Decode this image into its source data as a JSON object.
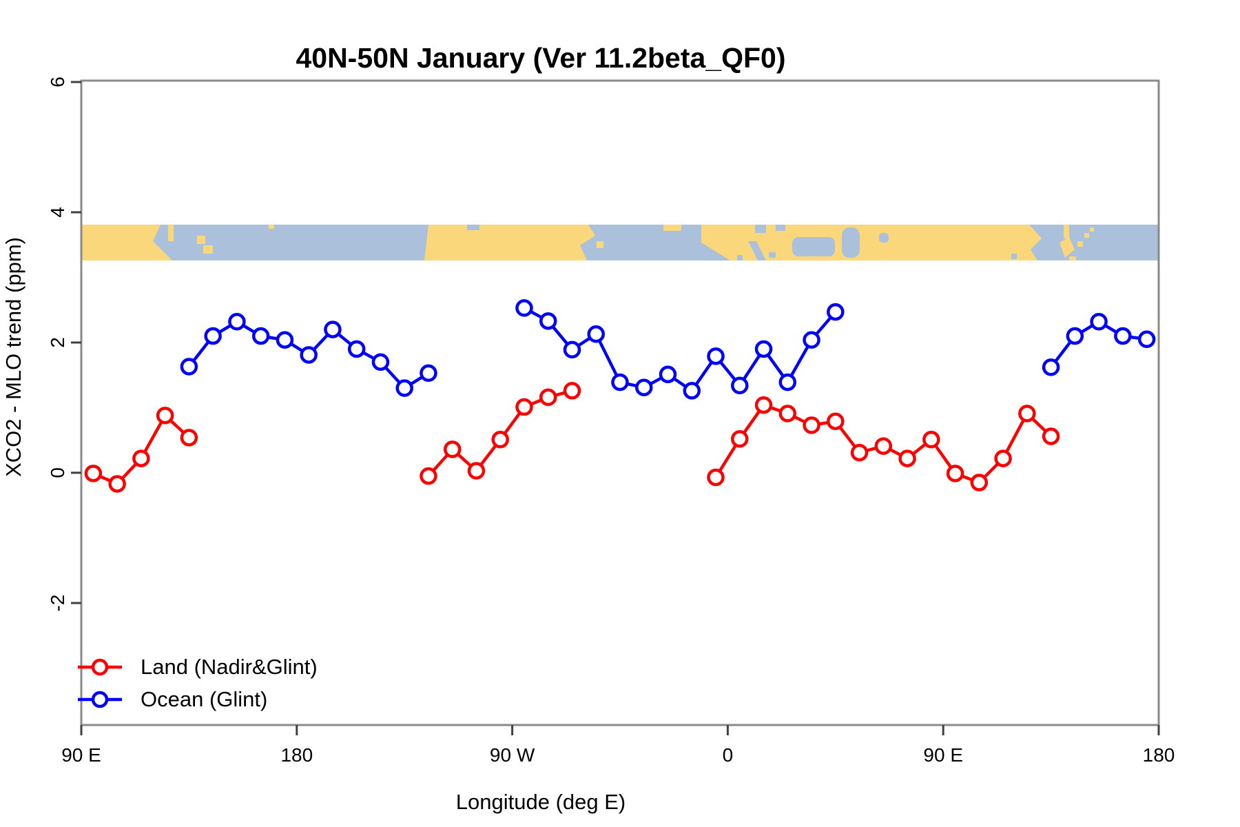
{
  "title": "40N-50N January (Ver 11.2beta_QF0)",
  "colors": {
    "land_series": "#FF0000",
    "ocean_series": "#0000FF",
    "map_land": "#FBD77C",
    "map_ocean": "#ABC0DA",
    "box": "#8a8a8a",
    "tick": "#404040",
    "text": "#000000"
  },
  "legend": {
    "items": [
      {
        "label": "Land (Nadir&Glint)",
        "color": "#FF0000"
      },
      {
        "label": "Ocean (Glint)",
        "color": "#0000FF"
      }
    ]
  },
  "chart_data": {
    "type": "line",
    "title": "40N-50N January (Ver 11.2beta_QF0)",
    "xlabel": "Longitude (deg E)",
    "ylabel": "XCO2 - MLO trend (ppm)",
    "xlim": [
      90,
      540
    ],
    "ylim": [
      -3.9,
      6.0
    ],
    "grid": false,
    "legend_position": "bottom-left",
    "x_ticks": [
      {
        "label": "90 E",
        "lon": 90
      },
      {
        "label": "180",
        "lon": 180
      },
      {
        "label": "90 W",
        "lon": 270
      },
      {
        "label": "0",
        "lon": 360
      },
      {
        "label": "90 E",
        "lon": 450
      },
      {
        "label": "180",
        "lon": 540
      }
    ],
    "y_ticks": [
      {
        "label": "6",
        "value": 6
      },
      {
        "label": "4",
        "value": 4
      },
      {
        "label": "2",
        "value": 2
      },
      {
        "label": "0",
        "value": 0
      },
      {
        "label": "-2",
        "value": -2
      }
    ],
    "map_strip": {
      "ppm_range": [
        3.26,
        3.81
      ],
      "ocean_color": "#ABC0DA",
      "land_color": "#FBD77C",
      "land_lon_spans": [
        [
          90,
          128
        ],
        [
          138,
          145
        ],
        [
          168,
          171
        ],
        [
          233,
          305
        ],
        [
          333,
          341
        ],
        [
          349,
          491
        ],
        [
          499,
          513
        ]
      ]
    },
    "series": [
      {
        "name": "Land (Nadir&Glint)",
        "color": "#FF0000",
        "marker": "open-circle",
        "segments": [
          [
            [
              95,
              -0.01
            ],
            [
              105,
              -0.17
            ],
            [
              115,
              0.22
            ],
            [
              125,
              0.88
            ],
            [
              135,
              0.54
            ]
          ],
          [
            [
              235,
              -0.05
            ],
            [
              245,
              0.36
            ],
            [
              255,
              0.03
            ],
            [
              265,
              0.51
            ],
            [
              275,
              1.01
            ],
            [
              285,
              1.16
            ],
            [
              295,
              1.26
            ]
          ],
          [
            [
              355,
              -0.07
            ],
            [
              365,
              0.52
            ],
            [
              375,
              1.04
            ],
            [
              385,
              0.91
            ],
            [
              395,
              0.73
            ],
            [
              405,
              0.79
            ],
            [
              415,
              0.31
            ],
            [
              425,
              0.41
            ],
            [
              435,
              0.22
            ],
            [
              445,
              0.51
            ],
            [
              455,
              -0.01
            ],
            [
              465,
              -0.15
            ],
            [
              475,
              0.22
            ],
            [
              485,
              0.91
            ],
            [
              495,
              0.56
            ]
          ]
        ]
      },
      {
        "name": "Ocean (Glint)",
        "color": "#0000FF",
        "marker": "open-circle",
        "segments": [
          [
            [
              135,
              1.63
            ],
            [
              145,
              2.1
            ],
            [
              155,
              2.32
            ],
            [
              165,
              2.1
            ],
            [
              175,
              2.04
            ],
            [
              185,
              1.81
            ],
            [
              195,
              2.2
            ],
            [
              205,
              1.9
            ],
            [
              215,
              1.7
            ],
            [
              225,
              1.3
            ],
            [
              235,
              1.53
            ]
          ],
          [
            [
              275,
              2.53
            ],
            [
              285,
              2.33
            ],
            [
              295,
              1.89
            ],
            [
              305,
              2.13
            ],
            [
              315,
              1.39
            ],
            [
              325,
              1.31
            ],
            [
              335,
              1.51
            ],
            [
              345,
              1.26
            ],
            [
              355,
              1.79
            ],
            [
              365,
              1.34
            ],
            [
              375,
              1.9
            ],
            [
              385,
              1.39
            ],
            [
              395,
              2.04
            ],
            [
              405,
              2.47
            ]
          ],
          [
            [
              495,
              1.62
            ],
            [
              505,
              2.1
            ],
            [
              515,
              2.32
            ],
            [
              525,
              2.1
            ],
            [
              535,
              2.05
            ]
          ]
        ]
      }
    ]
  }
}
